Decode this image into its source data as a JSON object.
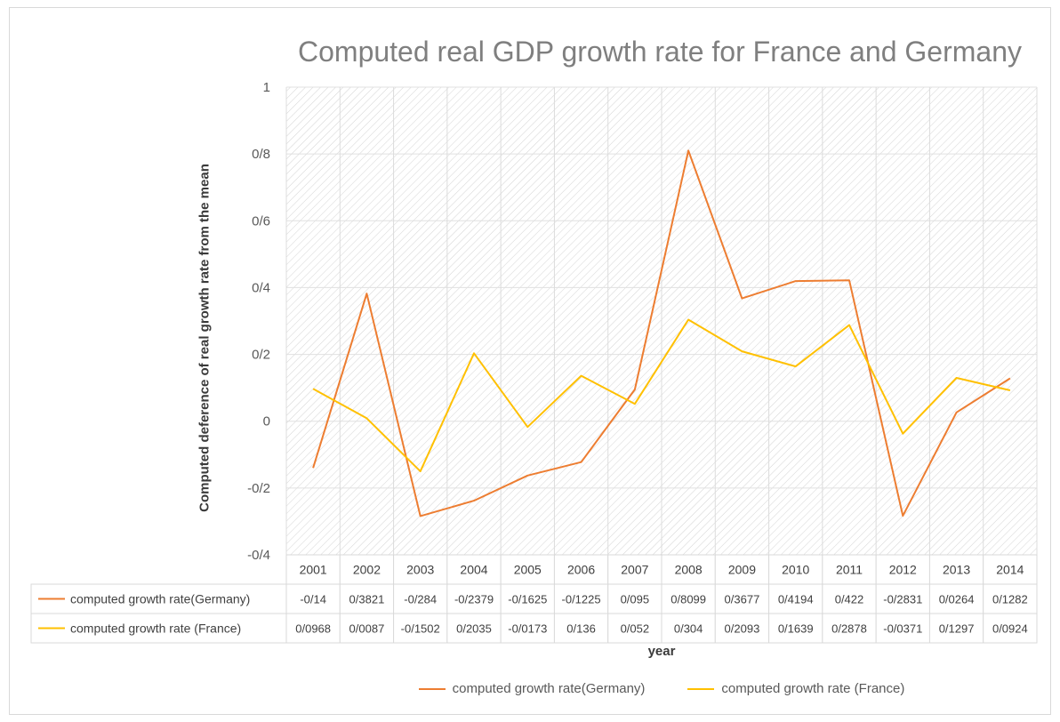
{
  "chart_data": {
    "type": "line",
    "title": "Computed real GDP growth rate for France and Germany",
    "xlabel": "year",
    "ylabel": "Computed deference of real growth rate  from the mean",
    "ylim": [
      -0.4,
      1
    ],
    "yticks": [
      "1",
      "0/8",
      "0/6",
      "0/4",
      "0/2",
      "0",
      "-0/2",
      "-0/4"
    ],
    "ytick_values": [
      1,
      0.8,
      0.6,
      0.4,
      0.2,
      0,
      -0.2,
      -0.4
    ],
    "categories": [
      "2001",
      "2002",
      "2003",
      "2004",
      "2005",
      "2006",
      "2007",
      "2008",
      "2009",
      "2010",
      "2011",
      "2012",
      "2013",
      "2014"
    ],
    "grid": true,
    "legend_position": "bottom",
    "series": [
      {
        "name": "computed growth rate(Germany)",
        "color": "#ED7D31",
        "values": [
          -0.14,
          0.3821,
          -0.284,
          -0.2379,
          -0.1625,
          -0.1225,
          0.095,
          0.8099,
          0.3677,
          0.4194,
          0.422,
          -0.2831,
          0.0264,
          0.1282
        ],
        "table_labels": [
          "-0/14",
          "0/3821",
          "-0/284",
          "-0/2379",
          "-0/1625",
          "-0/1225",
          "0/095",
          "0/8099",
          "0/3677",
          "0/4194",
          "0/422",
          "-0/2831",
          "0/0264",
          "0/1282"
        ]
      },
      {
        "name": "computed growth rate (France)",
        "color": "#FFC000",
        "values": [
          0.0968,
          0.0087,
          -0.1502,
          0.2035,
          -0.0173,
          0.136,
          0.052,
          0.304,
          0.2093,
          0.1639,
          0.2878,
          -0.0371,
          0.1297,
          0.0924
        ],
        "table_labels": [
          "0/0968",
          "0/0087",
          "-0/1502",
          "0/2035",
          "-0/0173",
          "0/136",
          "0/052",
          "0/304",
          "0/2093",
          "0/1639",
          "0/2878",
          "-0/0371",
          "0/1297",
          "0/0924"
        ]
      }
    ]
  }
}
